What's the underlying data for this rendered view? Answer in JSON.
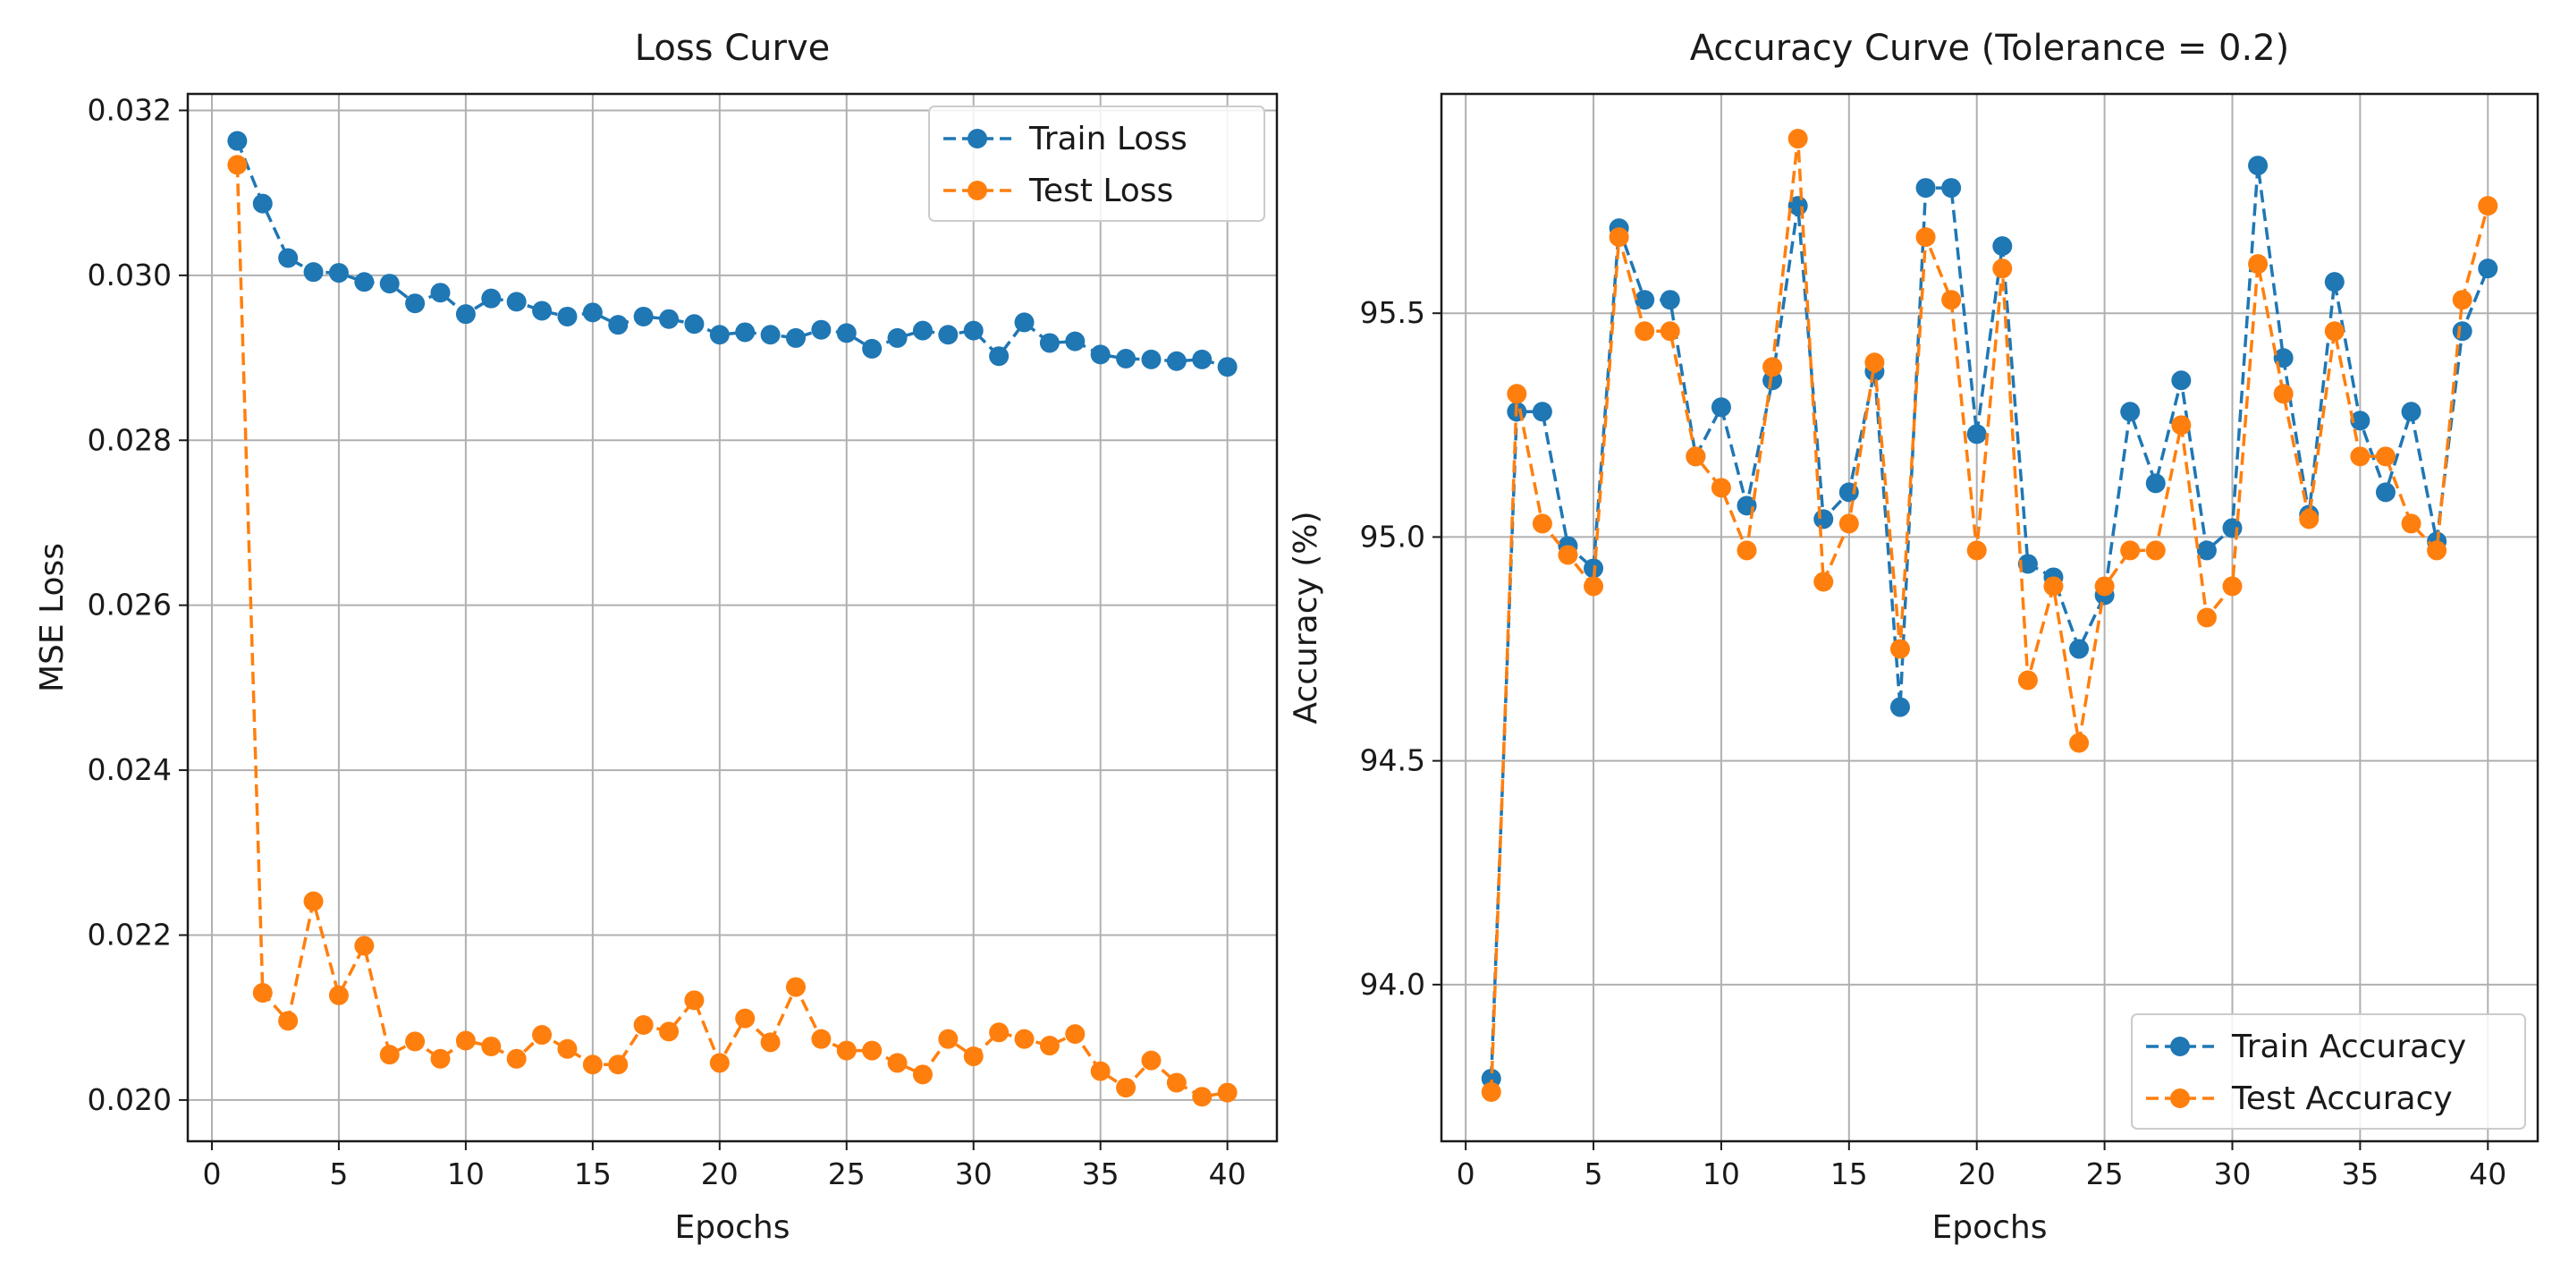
{
  "chart_data": [
    {
      "type": "line",
      "title": "Loss Curve",
      "xlabel": "Epochs",
      "ylabel": "MSE Loss",
      "xlim": [
        -0.95,
        41.95
      ],
      "ylim": [
        0.0195,
        0.0322
      ],
      "xticks": [
        0,
        5,
        10,
        15,
        20,
        25,
        30,
        35,
        40
      ],
      "xtick_labels": [
        "0",
        "5",
        "10",
        "15",
        "20",
        "25",
        "30",
        "35",
        "40"
      ],
      "yticks": [
        0.02,
        0.022,
        0.024,
        0.026,
        0.028,
        0.03,
        0.032
      ],
      "ytick_labels": [
        "0.020",
        "0.022",
        "0.024",
        "0.026",
        "0.028",
        "0.030",
        "0.032"
      ],
      "grid": true,
      "legend_position": "top-right",
      "x": [
        1,
        2,
        3,
        4,
        5,
        6,
        7,
        8,
        9,
        10,
        11,
        12,
        13,
        14,
        15,
        16,
        17,
        18,
        19,
        20,
        21,
        22,
        23,
        24,
        25,
        26,
        27,
        28,
        29,
        30,
        31,
        32,
        33,
        34,
        35,
        36,
        37,
        38,
        39,
        40
      ],
      "series": [
        {
          "name": "Train Loss",
          "color": "#1f77b4",
          "values": [
            0.03163,
            0.03087,
            0.03021,
            0.03004,
            0.03003,
            0.02992,
            0.0299,
            0.02966,
            0.02979,
            0.02953,
            0.02972,
            0.02968,
            0.02957,
            0.0295,
            0.02955,
            0.0294,
            0.0295,
            0.02947,
            0.02941,
            0.02928,
            0.02931,
            0.02928,
            0.02924,
            0.02934,
            0.0293,
            0.02911,
            0.02924,
            0.02933,
            0.02928,
            0.02933,
            0.02902,
            0.02943,
            0.02918,
            0.0292,
            0.02904,
            0.02899,
            0.02898,
            0.02896,
            0.02898,
            0.02889
          ]
        },
        {
          "name": "Test Loss",
          "color": "#ff7f0e",
          "values": [
            0.03134,
            0.0213,
            0.02096,
            0.02241,
            0.02127,
            0.02187,
            0.02055,
            0.02071,
            0.0205,
            0.02072,
            0.02065,
            0.0205,
            0.02079,
            0.02062,
            0.02043,
            0.02043,
            0.02091,
            0.02083,
            0.02121,
            0.02045,
            0.02099,
            0.0207,
            0.02137,
            0.02074,
            0.0206,
            0.0206,
            0.02045,
            0.02031,
            0.02074,
            0.02053,
            0.02082,
            0.02074,
            0.02066,
            0.0208,
            0.02035,
            0.02015,
            0.02048,
            0.02021,
            0.02004,
            0.02009
          ]
        }
      ]
    },
    {
      "type": "line",
      "title": "Accuracy Curve (Tolerance = 0.2)",
      "xlabel": "Epochs",
      "ylabel": "Accuracy (%)",
      "xlim": [
        -0.95,
        41.95
      ],
      "ylim": [
        93.65,
        95.99
      ],
      "xticks": [
        0,
        5,
        10,
        15,
        20,
        25,
        30,
        35,
        40
      ],
      "xtick_labels": [
        "0",
        "5",
        "10",
        "15",
        "20",
        "25",
        "30",
        "35",
        "40"
      ],
      "yticks": [
        94.0,
        94.5,
        95.0,
        95.5
      ],
      "ytick_labels": [
        "94.0",
        "94.5",
        "95.0",
        "95.5"
      ],
      "grid": true,
      "legend_position": "bottom-right",
      "x": [
        1,
        2,
        3,
        4,
        5,
        6,
        7,
        8,
        9,
        10,
        11,
        12,
        13,
        14,
        15,
        16,
        17,
        18,
        19,
        20,
        21,
        22,
        23,
        24,
        25,
        26,
        27,
        28,
        29,
        30,
        31,
        32,
        33,
        34,
        35,
        36,
        37,
        38,
        39,
        40
      ],
      "series": [
        {
          "name": "Train Accuracy",
          "color": "#1f77b4",
          "values": [
            93.79,
            95.28,
            95.28,
            94.98,
            94.93,
            95.69,
            95.53,
            95.53,
            95.18,
            95.29,
            95.07,
            95.35,
            95.74,
            95.04,
            95.1,
            95.37,
            94.62,
            95.78,
            95.78,
            95.23,
            95.65,
            94.94,
            94.91,
            94.75,
            94.87,
            95.28,
            95.12,
            95.35,
            94.97,
            95.02,
            95.83,
            95.4,
            95.05,
            95.57,
            95.26,
            95.1,
            95.28,
            94.99,
            95.46,
            95.6
          ]
        },
        {
          "name": "Test Accuracy",
          "color": "#ff7f0e",
          "values": [
            93.76,
            95.32,
            95.03,
            94.96,
            94.89,
            95.67,
            95.46,
            95.46,
            95.18,
            95.11,
            94.97,
            95.38,
            95.89,
            94.9,
            95.03,
            95.39,
            94.75,
            95.67,
            95.53,
            94.97,
            95.6,
            94.68,
            94.89,
            94.54,
            94.89,
            94.97,
            94.97,
            95.25,
            94.82,
            94.89,
            95.61,
            95.32,
            95.04,
            95.46,
            95.18,
            95.18,
            95.03,
            94.97,
            95.53,
            95.74
          ]
        }
      ]
    }
  ]
}
